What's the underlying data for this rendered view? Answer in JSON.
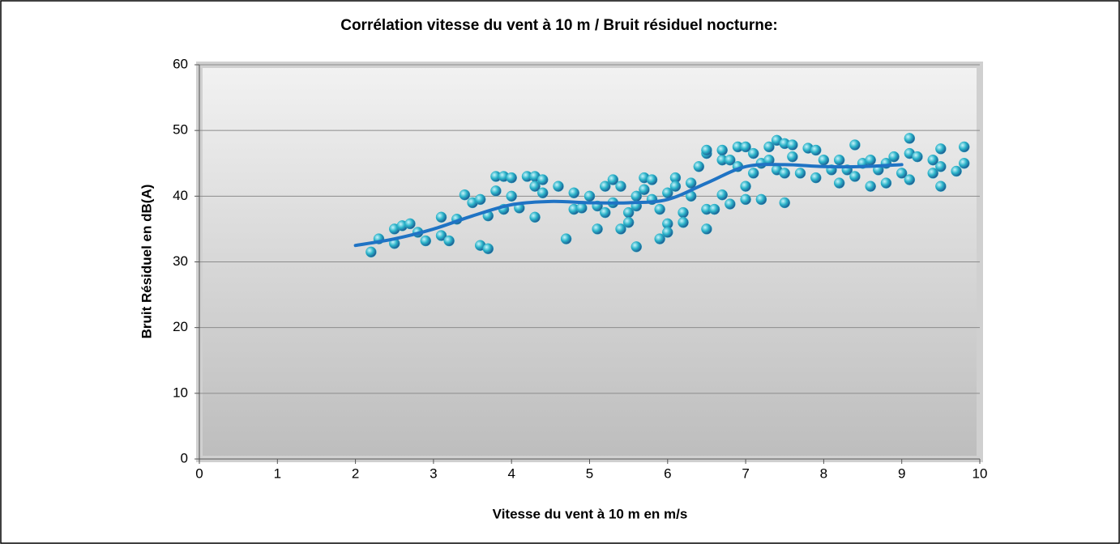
{
  "chart_data": {
    "type": "scatter",
    "title": "Corrélation vitesse du vent à 10 m / Bruit résiduel nocturne:",
    "x_label": "Vitesse du vent à 10 m en m/s",
    "y_label": "Bruit Résiduel en dB(A)",
    "xlim": [
      0,
      10
    ],
    "ylim": [
      0,
      60
    ],
    "xticks": [
      0,
      1,
      2,
      3,
      4,
      5,
      6,
      7,
      8,
      9,
      10
    ],
    "yticks": [
      0,
      10,
      20,
      30,
      40,
      50,
      60
    ],
    "grid": true,
    "series": [
      {
        "type": "scatter",
        "color": "#2ab3c9",
        "x": [
          2.2,
          2.3,
          2.5,
          2.5,
          2.6,
          2.7,
          2.8,
          2.9,
          3.1,
          3.1,
          3.2,
          3.3,
          3.4,
          3.5,
          3.6,
          3.6,
          3.7,
          3.7,
          3.8,
          3.8,
          3.9,
          3.9,
          4.0,
          4.0,
          4.1,
          4.2,
          4.3,
          4.3,
          4.3,
          4.4,
          4.4,
          4.6,
          4.7,
          4.8,
          4.8,
          4.9,
          5.0,
          5.1,
          5.1,
          5.2,
          5.2,
          5.3,
          5.3,
          5.4,
          5.4,
          5.5,
          5.5,
          5.6,
          5.6,
          5.6,
          5.7,
          5.7,
          5.8,
          5.8,
          5.9,
          5.9,
          6.0,
          6.0,
          6.0,
          6.1,
          6.1,
          6.2,
          6.2,
          6.3,
          6.3,
          6.4,
          6.5,
          6.5,
          6.5,
          6.5,
          6.6,
          6.7,
          6.7,
          6.7,
          6.8,
          6.8,
          6.9,
          6.9,
          7.0,
          7.0,
          7.0,
          7.1,
          7.1,
          7.2,
          7.2,
          7.3,
          7.3,
          7.4,
          7.4,
          7.5,
          7.5,
          7.5,
          7.6,
          7.6,
          7.7,
          7.8,
          7.9,
          7.9,
          8.0,
          8.1,
          8.2,
          8.2,
          8.3,
          8.4,
          8.4,
          8.5,
          8.6,
          8.6,
          8.7,
          8.8,
          8.8,
          8.9,
          9.0,
          9.1,
          9.1,
          9.1,
          9.2,
          9.4,
          9.4,
          9.5,
          9.5,
          9.5,
          9.7,
          9.8,
          9.8
        ],
        "values": [
          31.5,
          33.5,
          35,
          32.8,
          35.5,
          35.8,
          34.5,
          33.2,
          36.8,
          34,
          33.2,
          36.5,
          40.2,
          39,
          39.5,
          32.5,
          32,
          37,
          40.8,
          43,
          38,
          43,
          40,
          42.8,
          38.2,
          43,
          43,
          41.5,
          36.8,
          42.5,
          40.5,
          41.5,
          33.5,
          40.5,
          38,
          38.2,
          40,
          35,
          38.5,
          41.5,
          37.5,
          42.5,
          39,
          41.5,
          35,
          37.5,
          36,
          40,
          32.3,
          38.5,
          42.8,
          41,
          42.5,
          39.5,
          38,
          33.5,
          40.5,
          35.8,
          34.5,
          42.8,
          41.5,
          37.5,
          36,
          40,
          42,
          44.5,
          46.5,
          47,
          38,
          35,
          38,
          45.5,
          47,
          40.2,
          45.5,
          38.8,
          47.5,
          44.5,
          47.5,
          41.5,
          39.5,
          46.5,
          43.5,
          45,
          39.5,
          47.5,
          45.5,
          48.5,
          44,
          48,
          43.5,
          39,
          47.8,
          46,
          43.5,
          47.3,
          47,
          42.8,
          45.5,
          44,
          45.5,
          42,
          44,
          47.8,
          43,
          45,
          45.5,
          41.5,
          44,
          45,
          42,
          46,
          43.5,
          48.8,
          46.5,
          42.5,
          46,
          45.5,
          43.5,
          47.2,
          41.5,
          44.5,
          43.8,
          47.5,
          45
        ]
      },
      {
        "type": "line",
        "color": "#1f73c4",
        "x": [
          2,
          2.5,
          3,
          3.5,
          4,
          4.5,
          5,
          5.5,
          6,
          6.5,
          7,
          7.5,
          8,
          8.5,
          9
        ],
        "values": [
          32.5,
          33.5,
          35,
          37,
          38.7,
          39.2,
          39,
          39,
          39.5,
          42,
          44.5,
          44.8,
          44.5,
          44.5,
          44.8
        ]
      }
    ]
  }
}
